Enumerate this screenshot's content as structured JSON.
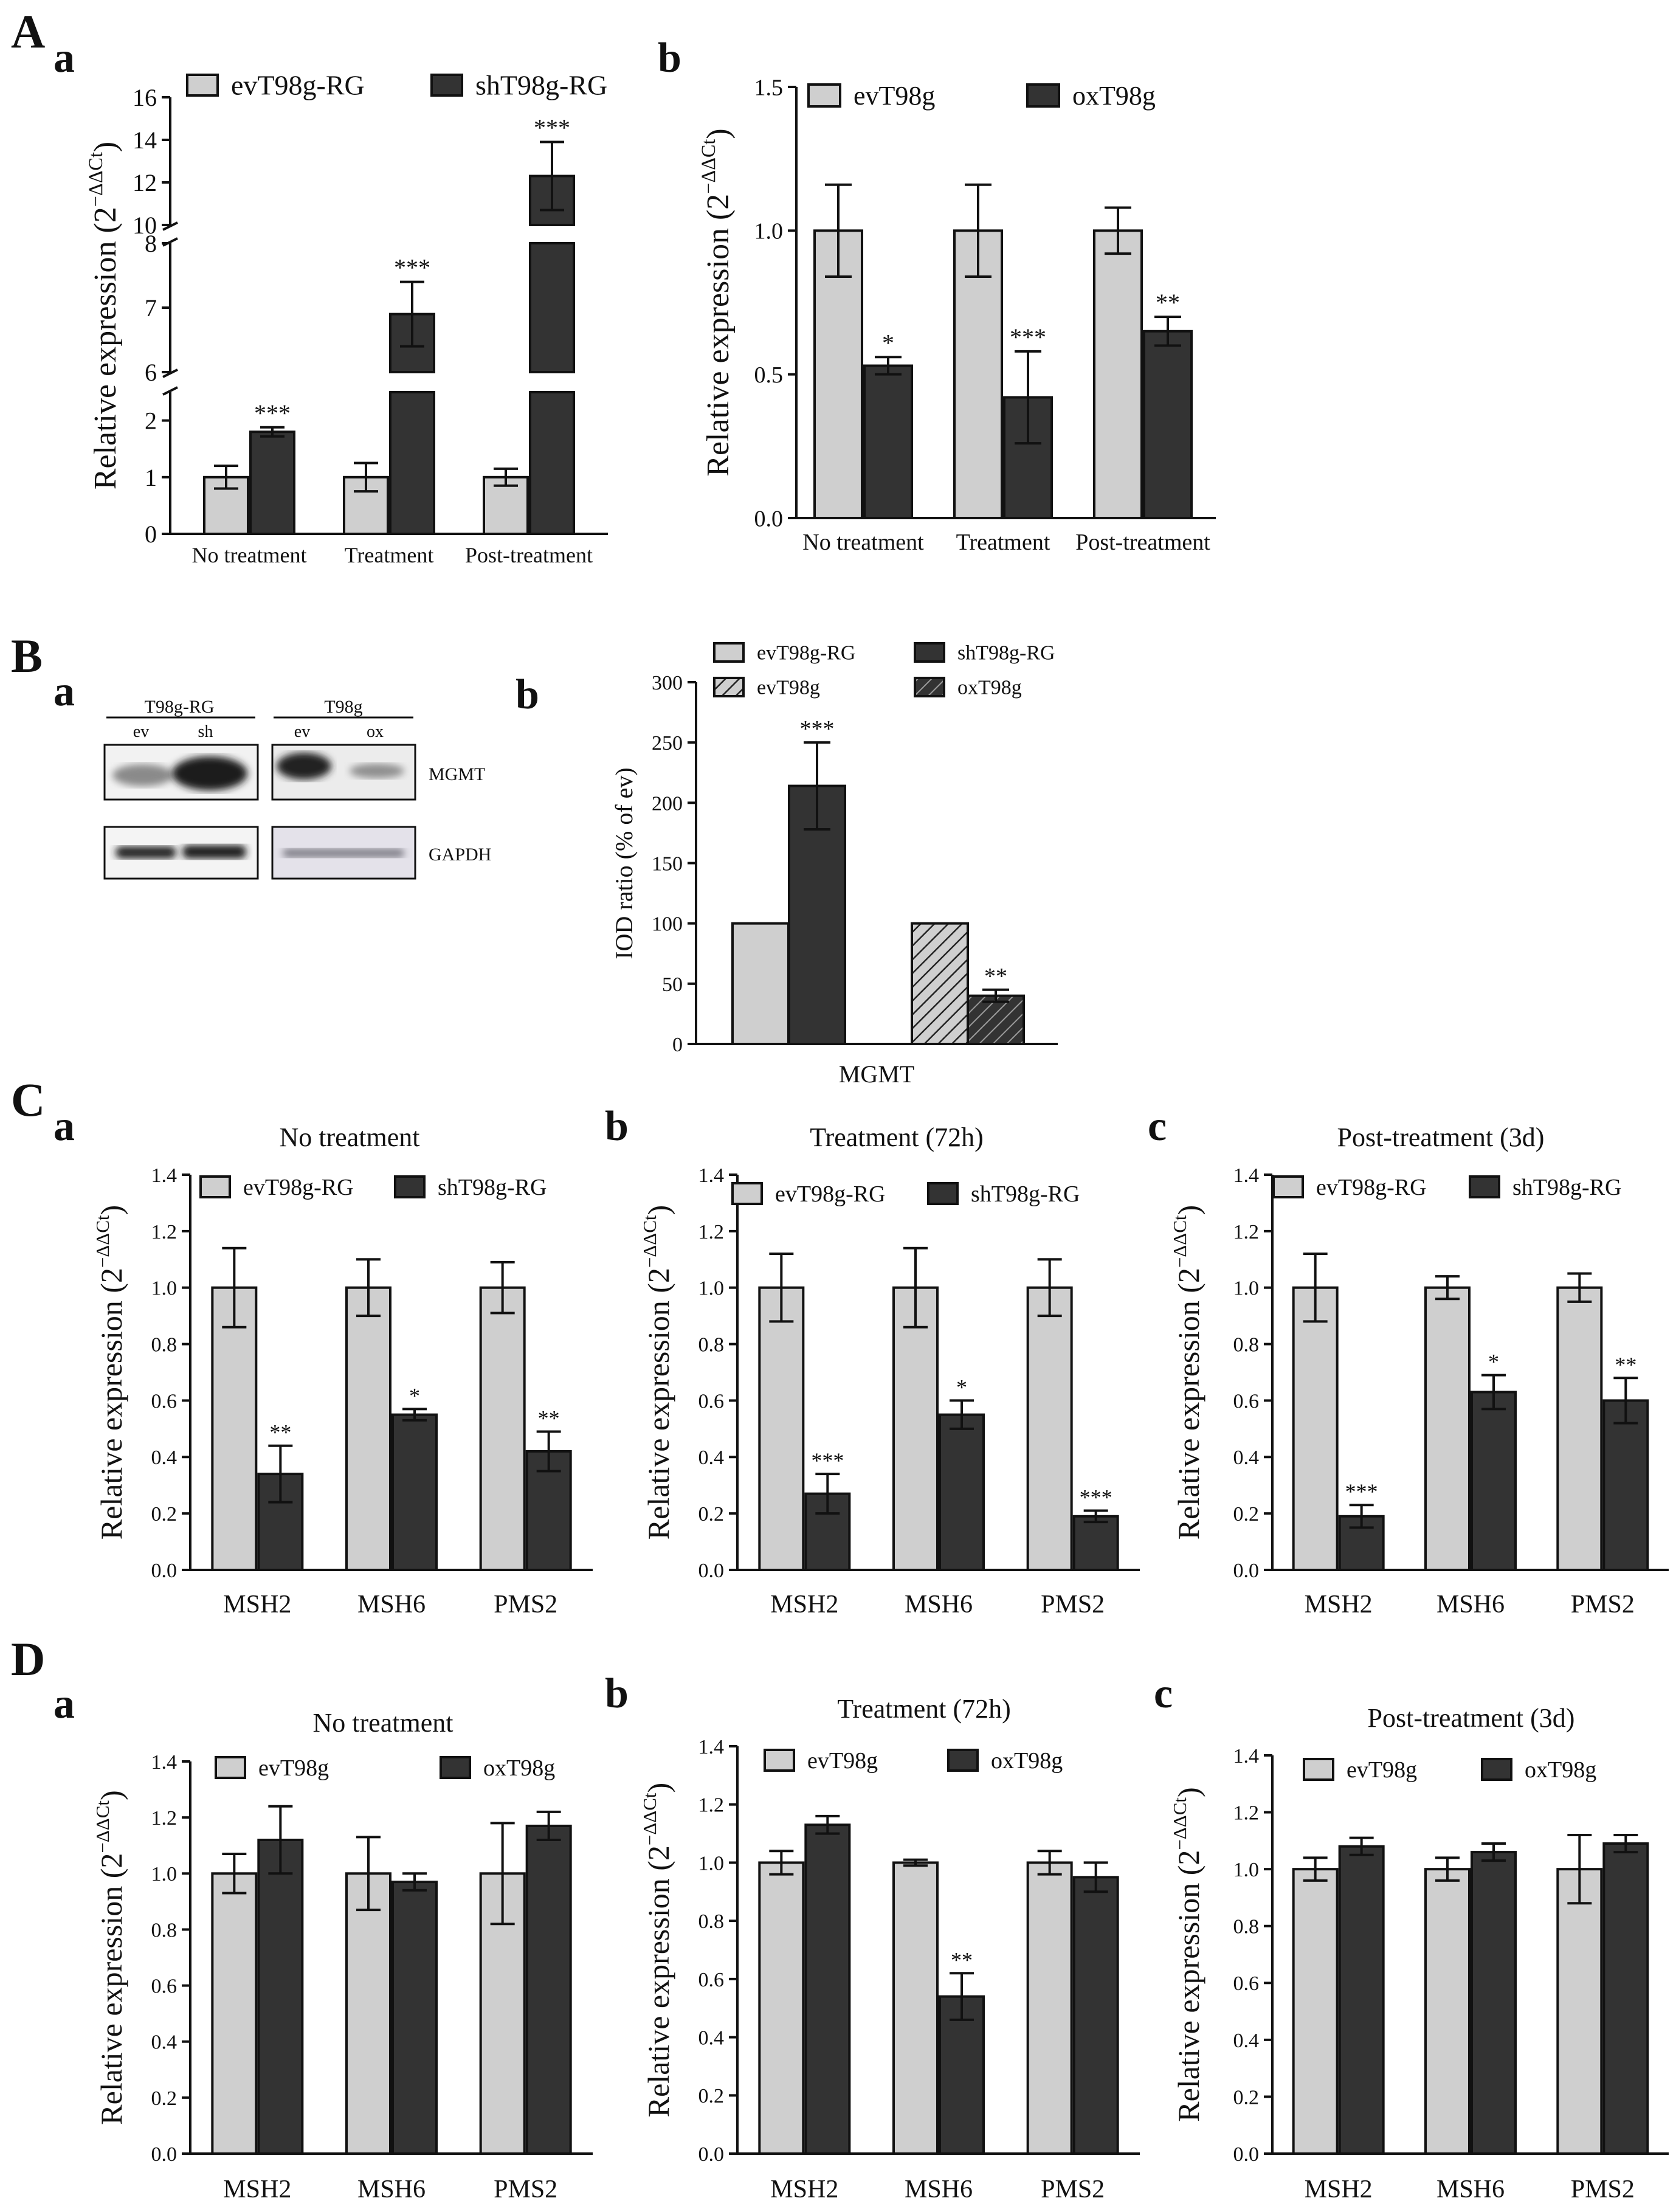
{
  "colors": {
    "light": "#cfcfcf",
    "dark": "#333333",
    "axis": "#111111"
  },
  "panel_labels": {
    "A": "A",
    "Aa": "a",
    "Ab": "b",
    "B": "B",
    "Ba": "a",
    "Bb": "b",
    "C": "C",
    "Ca": "a",
    "Cb": "b",
    "Cc": "c",
    "D": "D",
    "Da": "a",
    "Db": "b",
    "Dc": "c"
  },
  "blot": {
    "group1": "T98g-RG",
    "group2": "T98g",
    "lanes": [
      "ev",
      "sh",
      "ev",
      "ox"
    ],
    "rows": [
      "MGMT",
      "GAPDH"
    ]
  },
  "chart_data": [
    {
      "id": "Aa",
      "type": "bar",
      "title": "",
      "categories": [
        "No treatment",
        "Treatment",
        "Post-treatment"
      ],
      "ylabel": "Relative expression (2^-ΔΔCt)",
      "xlabel": "",
      "broken_axis": true,
      "axis_segments": [
        {
          "range": [
            0,
            2.5
          ],
          "ticks": [
            0,
            1,
            2
          ]
        },
        {
          "range": [
            6,
            8
          ],
          "ticks": [
            6,
            7,
            8
          ]
        },
        {
          "range": [
            10,
            16
          ],
          "ticks": [
            10,
            12,
            14,
            16
          ]
        }
      ],
      "series": [
        {
          "name": "evT98g-RG",
          "color": "light",
          "values": [
            1,
            1,
            1
          ],
          "errors": [
            0.2,
            0.25,
            0.15
          ],
          "sig": [
            "",
            "",
            ""
          ]
        },
        {
          "name": "shT98g-RG",
          "color": "dark",
          "values": [
            1.8,
            6.9,
            12.3
          ],
          "errors": [
            0.08,
            0.5,
            1.6
          ],
          "sig": [
            "***",
            "***",
            "***"
          ]
        }
      ]
    },
    {
      "id": "Ab",
      "type": "bar",
      "title": "",
      "categories": [
        "No treatment",
        "Treatment",
        "Post-treatment"
      ],
      "ylabel": "Relative expression (2^-ΔΔCt)",
      "xlabel": "",
      "ylim": [
        0,
        1.5
      ],
      "ticks": [
        0,
        0.5,
        1,
        1.5
      ],
      "tick_decimals": 1,
      "series": [
        {
          "name": "evT98g",
          "color": "light",
          "values": [
            1,
            1,
            1
          ],
          "errors": [
            0.16,
            0.16,
            0.08
          ],
          "sig": [
            "",
            "",
            ""
          ]
        },
        {
          "name": "oxT98g",
          "color": "dark",
          "values": [
            0.53,
            0.42,
            0.65
          ],
          "errors": [
            0.03,
            0.16,
            0.05
          ],
          "sig": [
            "*",
            "***",
            "**"
          ]
        }
      ]
    },
    {
      "id": "Bb",
      "type": "bar",
      "title": "",
      "categories": [
        "MGMT"
      ],
      "ylabel": "IOD ratio (% of ev)",
      "xlabel": "",
      "ylim": [
        0,
        300
      ],
      "ticks": [
        0,
        50,
        100,
        150,
        200,
        250,
        300
      ],
      "tick_decimals": 0,
      "series": [
        {
          "name": "evT98g-RG",
          "color": "light",
          "values": [
            100
          ],
          "errors": [
            0
          ],
          "sig": [
            ""
          ]
        },
        {
          "name": "shT98g-RG",
          "color": "dark",
          "values": [
            214
          ],
          "errors": [
            36
          ],
          "sig": [
            "***"
          ]
        },
        {
          "name": "evT98g",
          "color": "light",
          "hatch": true,
          "values": [
            100
          ],
          "errors": [
            0
          ],
          "sig": [
            ""
          ]
        },
        {
          "name": "oxT98g",
          "color": "dark",
          "hatch": true,
          "values": [
            40
          ],
          "errors": [
            5
          ],
          "sig": [
            "**"
          ]
        }
      ]
    },
    {
      "id": "Ca",
      "type": "bar",
      "title": "No treatment",
      "categories": [
        "MSH2",
        "MSH6",
        "PMS2"
      ],
      "ylabel": "Relative expression (2^-ΔΔCt)",
      "xlabel": "",
      "ylim": [
        0,
        1.4
      ],
      "ticks": [
        0,
        0.2,
        0.4,
        0.6,
        0.8,
        1,
        1.2,
        1.4
      ],
      "tick_decimals": 1,
      "series": [
        {
          "name": "evT98g-RG",
          "color": "light",
          "values": [
            1,
            1,
            1
          ],
          "errors": [
            0.14,
            0.1,
            0.09
          ],
          "sig": [
            "",
            "",
            ""
          ]
        },
        {
          "name": "shT98g-RG",
          "color": "dark",
          "values": [
            0.34,
            0.55,
            0.42
          ],
          "errors": [
            0.1,
            0.02,
            0.07
          ],
          "sig": [
            "**",
            "*",
            "**"
          ]
        }
      ]
    },
    {
      "id": "Cb",
      "type": "bar",
      "title": "Treatment (72h)",
      "categories": [
        "MSH2",
        "MSH6",
        "PMS2"
      ],
      "ylabel": "Relative expression (2^-ΔΔCt)",
      "xlabel": "",
      "ylim": [
        0,
        1.4
      ],
      "ticks": [
        0,
        0.2,
        0.4,
        0.6,
        0.8,
        1,
        1.2,
        1.4
      ],
      "tick_decimals": 1,
      "series": [
        {
          "name": "evT98g-RG",
          "color": "light",
          "values": [
            1,
            1,
            1
          ],
          "errors": [
            0.12,
            0.14,
            0.1
          ],
          "sig": [
            "",
            "",
            ""
          ]
        },
        {
          "name": "shT98g-RG",
          "color": "dark",
          "values": [
            0.27,
            0.55,
            0.19
          ],
          "errors": [
            0.07,
            0.05,
            0.02
          ],
          "sig": [
            "***",
            "*",
            "***"
          ]
        }
      ]
    },
    {
      "id": "Cc",
      "type": "bar",
      "title": "Post-treatment (3d)",
      "categories": [
        "MSH2",
        "MSH6",
        "PMS2"
      ],
      "ylabel": "Relative expression (2^-ΔΔCt)",
      "xlabel": "",
      "ylim": [
        0,
        1.4
      ],
      "ticks": [
        0,
        0.2,
        0.4,
        0.6,
        0.8,
        1,
        1.2,
        1.4
      ],
      "tick_decimals": 1,
      "series": [
        {
          "name": "evT98g-RG",
          "color": "light",
          "values": [
            1,
            1,
            1
          ],
          "errors": [
            0.12,
            0.04,
            0.05
          ],
          "sig": [
            "",
            "",
            ""
          ]
        },
        {
          "name": "shT98g-RG",
          "color": "dark",
          "values": [
            0.19,
            0.63,
            0.6
          ],
          "errors": [
            0.04,
            0.06,
            0.08
          ],
          "sig": [
            "***",
            "*",
            "**"
          ]
        }
      ]
    },
    {
      "id": "Da",
      "type": "bar",
      "title": "No treatment",
      "categories": [
        "MSH2",
        "MSH6",
        "PMS2"
      ],
      "ylabel": "Relative expression (2^-ΔΔCt)",
      "xlabel": "",
      "ylim": [
        0,
        1.4
      ],
      "ticks": [
        0,
        0.2,
        0.4,
        0.6,
        0.8,
        1,
        1.2,
        1.4
      ],
      "tick_decimals": 1,
      "series": [
        {
          "name": "evT98g",
          "color": "light",
          "values": [
            1,
            1,
            1
          ],
          "errors": [
            0.07,
            0.13,
            0.18
          ],
          "sig": [
            "",
            "",
            ""
          ]
        },
        {
          "name": "oxT98g",
          "color": "dark",
          "values": [
            1.12,
            0.97,
            1.17
          ],
          "errors": [
            0.12,
            0.03,
            0.05
          ],
          "sig": [
            "",
            "",
            ""
          ]
        }
      ]
    },
    {
      "id": "Db",
      "type": "bar",
      "title": "Treatment (72h)",
      "categories": [
        "MSH2",
        "MSH6",
        "PMS2"
      ],
      "ylabel": "Relative expression (2^-ΔΔCt)",
      "xlabel": "",
      "ylim": [
        0,
        1.4
      ],
      "ticks": [
        0,
        0.2,
        0.4,
        0.6,
        0.8,
        1,
        1.2,
        1.4
      ],
      "tick_decimals": 1,
      "series": [
        {
          "name": "evT98g",
          "color": "light",
          "values": [
            1,
            1,
            1
          ],
          "errors": [
            0.04,
            0.01,
            0.04
          ],
          "sig": [
            "",
            "",
            ""
          ]
        },
        {
          "name": "oxT98g",
          "color": "dark",
          "values": [
            1.13,
            0.54,
            0.95
          ],
          "errors": [
            0.03,
            0.08,
            0.05
          ],
          "sig": [
            "",
            "**",
            ""
          ]
        }
      ]
    },
    {
      "id": "Dc",
      "type": "bar",
      "title": "Post-treatment (3d)",
      "categories": [
        "MSH2",
        "MSH6",
        "PMS2"
      ],
      "ylabel": "Relative expression (2^-ΔΔCt)",
      "xlabel": "",
      "ylim": [
        0,
        1.4
      ],
      "ticks": [
        0,
        0.2,
        0.4,
        0.6,
        0.8,
        1,
        1.2,
        1.4
      ],
      "tick_decimals": 1,
      "series": [
        {
          "name": "evT98g",
          "color": "light",
          "values": [
            1,
            1,
            1
          ],
          "errors": [
            0.04,
            0.04,
            0.12
          ],
          "sig": [
            "",
            "",
            ""
          ]
        },
        {
          "name": "oxT98g",
          "color": "dark",
          "values": [
            1.08,
            1.06,
            1.09
          ],
          "errors": [
            0.03,
            0.03,
            0.03
          ],
          "sig": [
            "",
            "",
            ""
          ]
        }
      ]
    }
  ]
}
